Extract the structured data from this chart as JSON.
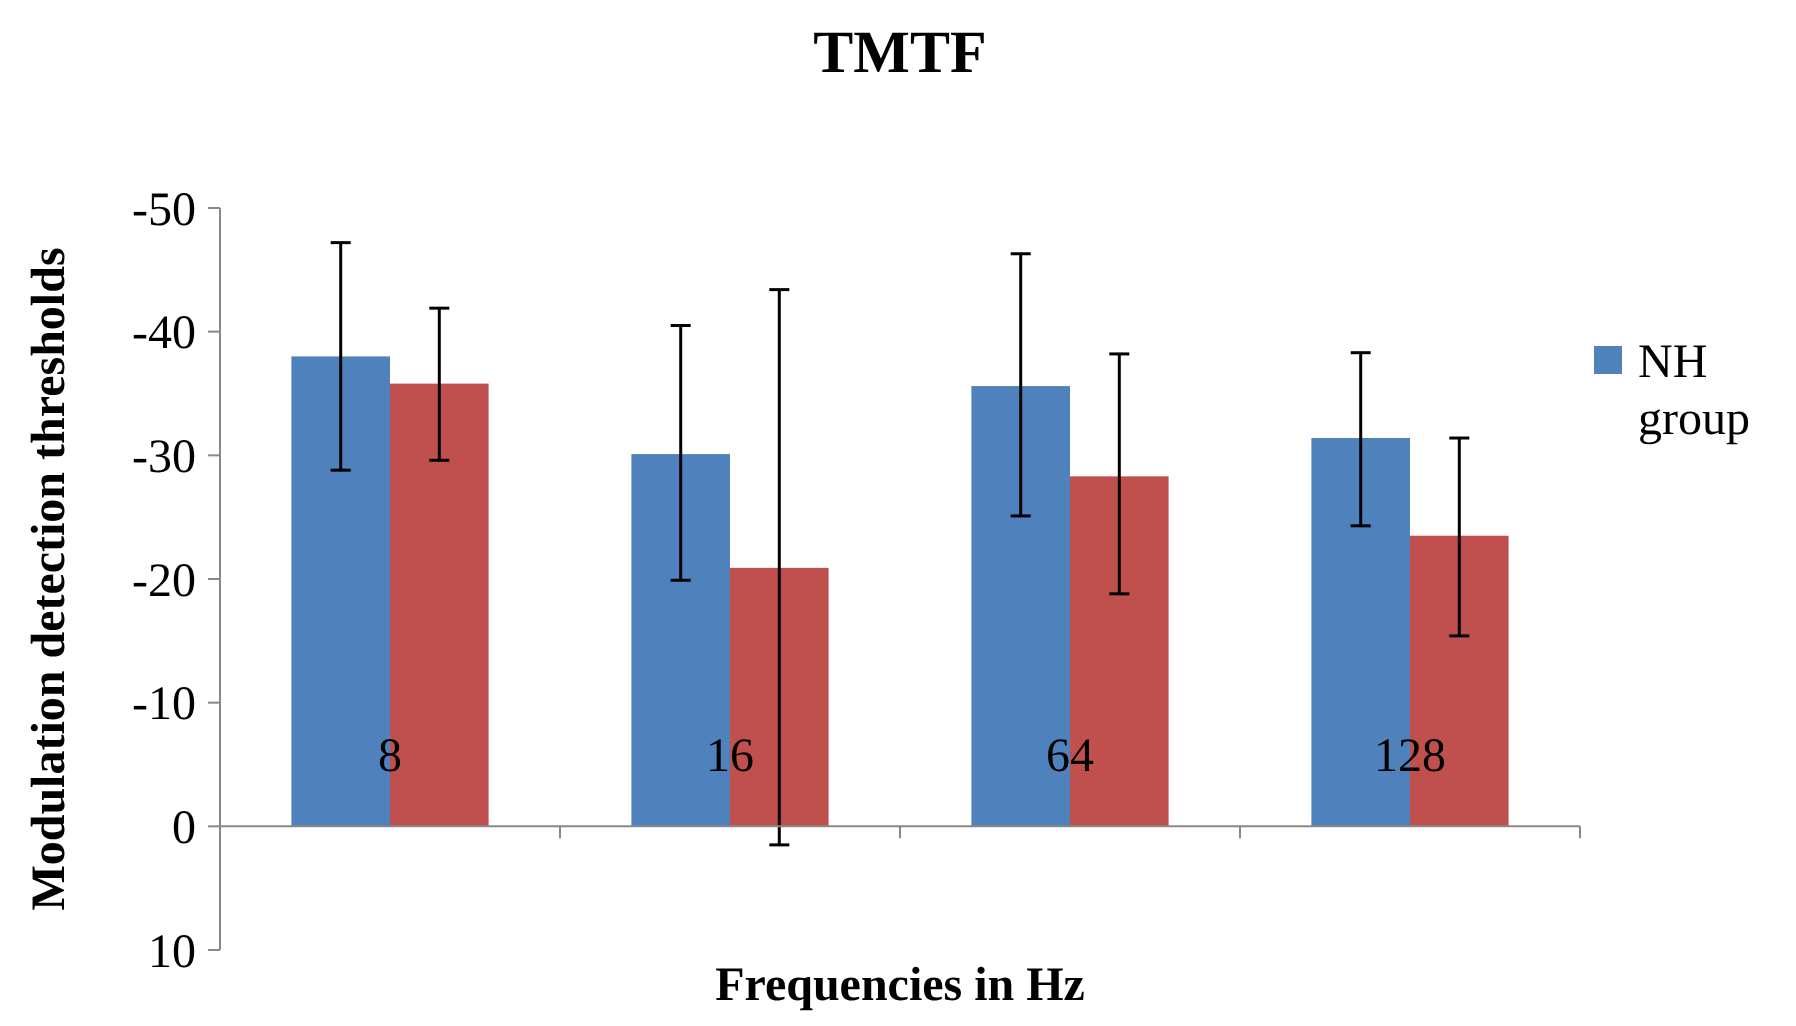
{
  "chart_data": {
    "type": "bar",
    "title": "TMTF",
    "xlabel": "Frequencies in Hz",
    "ylabel": "Modulation detection thresholds",
    "categories": [
      "8",
      "16",
      "64",
      "128"
    ],
    "series": [
      {
        "name": "NH group",
        "color": "#4f81bd",
        "values": [
          -38.0,
          -30.1,
          -35.6,
          -31.4
        ],
        "errors": [
          [
            -47.2,
            -28.8
          ],
          [
            -40.5,
            -19.9
          ],
          [
            -46.3,
            -25.1
          ],
          [
            -38.3,
            -24.3
          ]
        ]
      },
      {
        "color": "#c0504d",
        "values": [
          -35.8,
          -20.9,
          -28.3,
          -23.5
        ],
        "errors": [
          [
            -41.9,
            -29.6
          ],
          [
            -43.4,
            1.5
          ],
          [
            -38.2,
            -18.8
          ],
          [
            -31.4,
            -15.4
          ]
        ]
      }
    ],
    "ylim": [
      10,
      -50
    ],
    "yticks": [
      -50,
      -40,
      -30,
      -20,
      -10,
      0,
      10
    ],
    "grid": false,
    "legend": "right"
  }
}
